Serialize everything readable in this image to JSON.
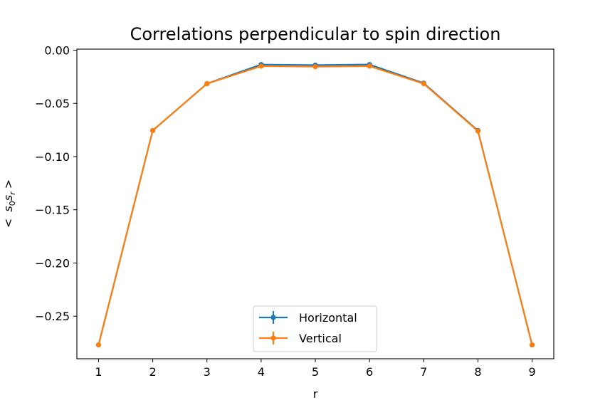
{
  "chart_data": {
    "type": "line",
    "title": "Correlations perpendicular to spin direction",
    "xlabel": "r",
    "ylabel": "< s0 sr >",
    "ylabel_parts": {
      "lt": "<",
      "s1": "s",
      "sub1": "0",
      "s2": "s",
      "sub2": "r",
      "gt": ">"
    },
    "x": [
      1,
      2,
      3,
      4,
      5,
      6,
      7,
      8,
      9
    ],
    "xlim": [
      0.6,
      9.4
    ],
    "ylim": [
      -0.29,
      0.001
    ],
    "xticks": [
      "1",
      "2",
      "3",
      "4",
      "5",
      "6",
      "7",
      "8",
      "9"
    ],
    "yticks": [
      {
        "value": 0.0,
        "label": "0.00"
      },
      {
        "value": -0.05,
        "label": "−0.05"
      },
      {
        "value": -0.1,
        "label": "−0.10"
      },
      {
        "value": -0.15,
        "label": "−0.15"
      },
      {
        "value": -0.2,
        "label": "−0.20"
      },
      {
        "value": -0.25,
        "label": "−0.25"
      }
    ],
    "grid": false,
    "legend_position": "lower-center",
    "series": [
      {
        "name": "Horizontal",
        "color": "#1f77b4",
        "values": [
          -0.277,
          -0.0755,
          -0.0315,
          -0.0135,
          -0.014,
          -0.0135,
          -0.031,
          -0.0755,
          -0.277
        ]
      },
      {
        "name": "Vertical",
        "color": "#ff7f0e",
        "values": [
          -0.277,
          -0.0755,
          -0.0315,
          -0.015,
          -0.0155,
          -0.015,
          -0.0315,
          -0.076,
          -0.277
        ]
      }
    ]
  }
}
